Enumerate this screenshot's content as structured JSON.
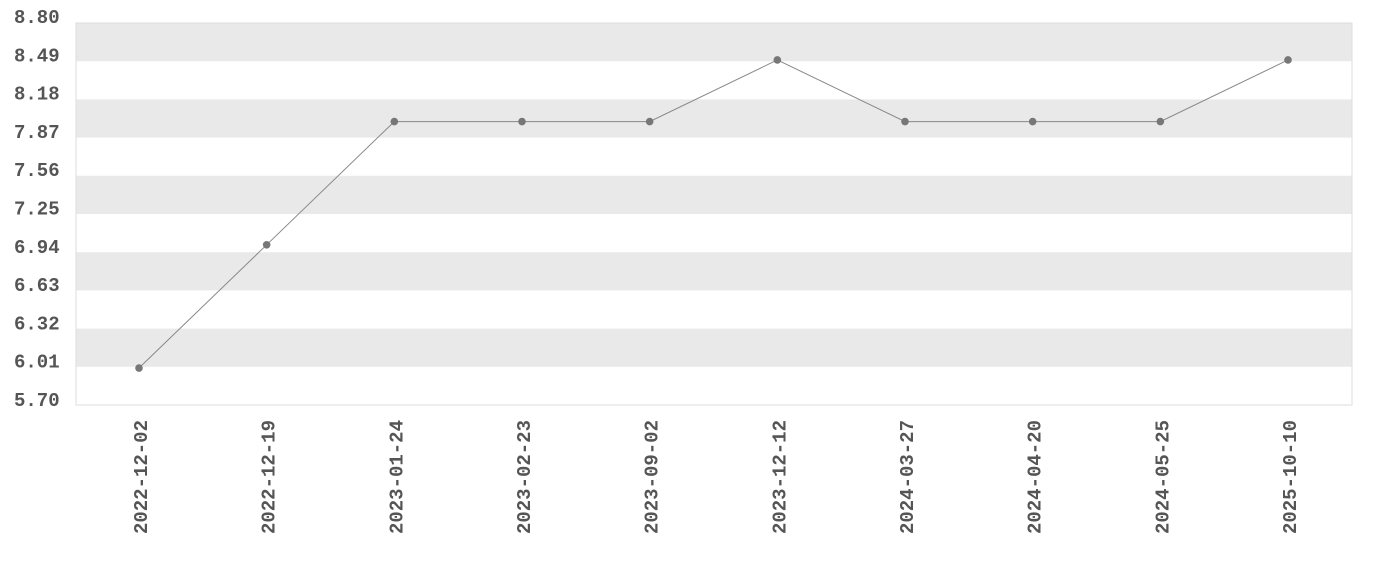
{
  "chart_data": {
    "type": "line",
    "title": "",
    "xlabel": "",
    "ylabel": "",
    "x": [
      "2022-12-02",
      "2022-12-19",
      "2023-01-24",
      "2023-02-23",
      "2023-09-02",
      "2023-12-12",
      "2024-03-27",
      "2024-04-20",
      "2024-05-25",
      "2025-10-10"
    ],
    "series": [
      {
        "values": [
          6.0,
          7.0,
          8.0,
          8.0,
          8.0,
          8.5,
          8.0,
          8.0,
          8.0,
          8.5
        ]
      }
    ],
    "ylim": [
      5.7,
      8.8
    ],
    "yticks": [
      "8.80",
      "8.49",
      "8.18",
      "7.87",
      "7.56",
      "7.25",
      "6.94",
      "6.63",
      "6.32",
      "6.01",
      "5.70"
    ],
    "grid": "alternating horizontal bands",
    "legend": "none",
    "colors": {
      "line": "#888888",
      "marker": "#777777",
      "band": "#e9e9e9",
      "text": "#555555",
      "frame": "#dddddd"
    }
  }
}
